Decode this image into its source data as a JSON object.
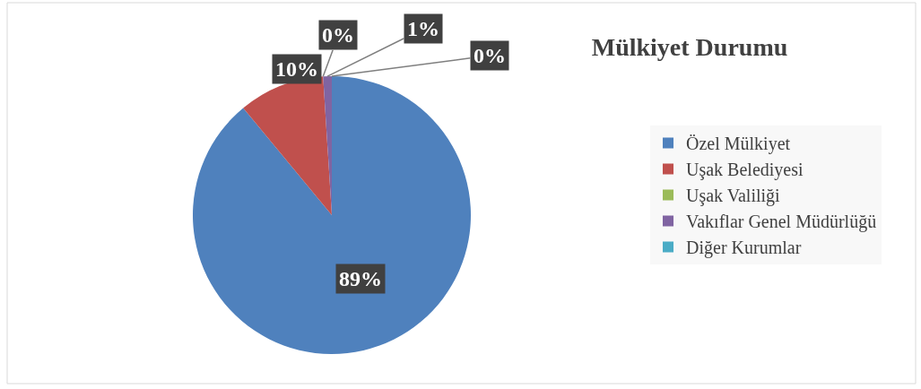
{
  "chart_data": {
    "type": "pie",
    "title": "Mülkiyet Durumu",
    "categories": [
      "Özel Mülkiyet",
      "Uşak Belediyesi",
      "Uşak Valiliği",
      "Vakıflar Genel Müdürlüğü",
      "Diğer Kurumlar"
    ],
    "values": [
      89,
      10,
      0,
      1,
      0
    ],
    "colors": [
      "#4f81bd",
      "#c0504d",
      "#9bbb59",
      "#8064a2",
      "#4bacc6"
    ],
    "value_labels": [
      "89%",
      "10%",
      "0%",
      "1%",
      "0%"
    ],
    "legend": "right"
  }
}
